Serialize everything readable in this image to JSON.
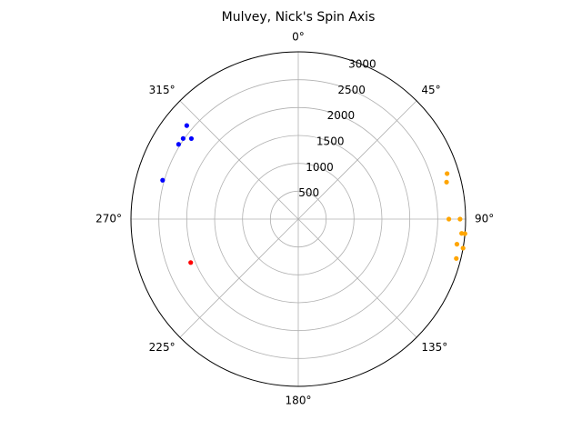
{
  "chart_data": {
    "type": "scatter",
    "projection": "polar",
    "title": "Mulvey, Nick's Spin Axis",
    "theta_direction": "clockwise",
    "theta_zero_location": "top",
    "theta_unit": "degrees",
    "r_unit": "rpm",
    "rlim": [
      0,
      3000
    ],
    "r_ticks": [
      500,
      1000,
      1500,
      2000,
      2500,
      3000
    ],
    "r_tick_labels": [
      "500",
      "1000",
      "1500",
      "2000",
      "2500",
      "3000"
    ],
    "theta_ticks": [
      0,
      45,
      90,
      135,
      180,
      225,
      270,
      315
    ],
    "theta_tick_labels": [
      "0°",
      "45°",
      "90°",
      "135°",
      "180°",
      "225°",
      "270°",
      "315°"
    ],
    "grid": true,
    "legend": "none",
    "series": [
      {
        "color": "#0000ff",
        "points": [
          {
            "theta": 305,
            "r": 2520
          },
          {
            "theta": 310,
            "r": 2610
          },
          {
            "theta": 307,
            "r": 2400
          },
          {
            "theta": 302,
            "r": 2530
          },
          {
            "theta": 286,
            "r": 2530
          }
        ]
      },
      {
        "color": "#ffa500",
        "points": [
          {
            "theta": 73,
            "r": 2790
          },
          {
            "theta": 76,
            "r": 2740
          },
          {
            "theta": 90,
            "r": 2700
          },
          {
            "theta": 90,
            "r": 2900
          },
          {
            "theta": 95,
            "r": 2940
          },
          {
            "theta": 95,
            "r": 3000
          },
          {
            "theta": 99,
            "r": 2880
          },
          {
            "theta": 100,
            "r": 3000
          },
          {
            "theta": 104,
            "r": 2920
          }
        ]
      },
      {
        "color": "#ff0000",
        "points": [
          {
            "theta": 248,
            "r": 2080
          }
        ]
      }
    ]
  }
}
